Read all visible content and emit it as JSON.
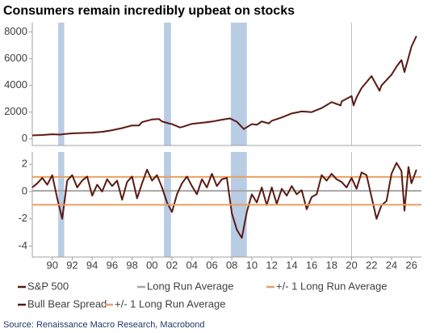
{
  "chart_data": [
    {
      "type": "line",
      "title": "Consumers remain incredibly upbeat on stocks",
      "xlim": [
        1988,
        2027
      ],
      "ylim": [
        -500,
        8700
      ],
      "yticks": [
        0,
        2000,
        4000,
        6000,
        8000
      ],
      "shaded_ranges": [
        [
          1990.6,
          1991.2
        ],
        [
          2001.2,
          2001.9
        ],
        [
          2007.9,
          2009.5
        ]
      ],
      "vlines": [
        2020
      ],
      "series": [
        {
          "name": "S&P 500",
          "color": "#5a1a12",
          "x": [
            1988,
            1989,
            1990,
            1990.8,
            1991.5,
            1992,
            1993,
            1994,
            1995,
            1996,
            1997,
            1998,
            1998.7,
            1999,
            2000,
            2000.7,
            2001,
            2001.7,
            2002,
            2002.8,
            2003,
            2004,
            2005,
            2006,
            2007,
            2007.8,
            2008.5,
            2009.2,
            2010,
            2010.5,
            2011,
            2011.7,
            2012,
            2013,
            2014,
            2015,
            2016,
            2017,
            2018,
            2018.9,
            2019,
            2020,
            2020.2,
            2020.5,
            2021,
            2022,
            2022.8,
            2023,
            2024,
            2024.5,
            2025,
            2025.3,
            2025.6,
            2026,
            2026.5
          ],
          "values": [
            260,
            290,
            340,
            320,
            380,
            410,
            440,
            460,
            520,
            640,
            800,
            1000,
            1000,
            1250,
            1450,
            1480,
            1300,
            1150,
            1100,
            850,
            880,
            1120,
            1200,
            1290,
            1430,
            1530,
            1280,
            730,
            1100,
            1050,
            1300,
            1150,
            1350,
            1600,
            1900,
            2050,
            2000,
            2300,
            2750,
            2500,
            2800,
            3200,
            2500,
            3100,
            3800,
            4700,
            3600,
            4000,
            4800,
            5400,
            5900,
            5000,
            5800,
            6900,
            7700
          ]
        }
      ]
    },
    {
      "type": "line",
      "xlim": [
        1988,
        2027
      ],
      "ylim": [
        -4.8,
        2.9
      ],
      "yticks": [
        -4,
        -2,
        0,
        2
      ],
      "xticks": [
        {
          "value": 1990,
          "label": "90"
        },
        {
          "value": 1992,
          "label": "92"
        },
        {
          "value": 1994,
          "label": "94"
        },
        {
          "value": 1996,
          "label": "96"
        },
        {
          "value": 1998,
          "label": "98"
        },
        {
          "value": 2000,
          "label": "00"
        },
        {
          "value": 2002,
          "label": "02"
        },
        {
          "value": 2004,
          "label": "04"
        },
        {
          "value": 2006,
          "label": "06"
        },
        {
          "value": 2008,
          "label": "08"
        },
        {
          "value": 2010,
          "label": "10"
        },
        {
          "value": 2012,
          "label": "12"
        },
        {
          "value": 2014,
          "label": "14"
        },
        {
          "value": 2016,
          "label": "16"
        },
        {
          "value": 2018,
          "label": "18"
        },
        {
          "value": 2020,
          "label": "20"
        },
        {
          "value": 2022,
          "label": "22"
        },
        {
          "value": 2024,
          "label": "24"
        },
        {
          "value": 2026,
          "label": "26"
        }
      ],
      "shaded_ranges": [
        [
          1990.6,
          1991.2
        ],
        [
          2001.2,
          2001.9
        ],
        [
          2007.9,
          2009.5
        ]
      ],
      "vlines": [
        2020
      ],
      "series": [
        {
          "name": "Long Run Average",
          "color": "#a6a6a6",
          "x": [
            1988,
            2027
          ],
          "values": [
            0.05,
            0.05
          ]
        },
        {
          "name": "+/- 1 Long Run Average",
          "color": "#e8a060",
          "x": [
            1988,
            2027
          ],
          "values": [
            1.07,
            1.07
          ]
        },
        {
          "name": "Bull Bear Spread",
          "color": "#5a1a12",
          "x": [
            1988,
            1988.5,
            1989,
            1989.5,
            1990,
            1990.5,
            1991,
            1991.5,
            1992,
            1992.5,
            1993,
            1993.5,
            1994,
            1994.5,
            1995,
            1995.5,
            1996,
            1996.5,
            1997,
            1997.5,
            1998,
            1998.5,
            1999,
            1999.5,
            2000,
            2000.5,
            2001,
            2001.5,
            2002,
            2002.5,
            2003,
            2003.5,
            2004,
            2004.5,
            2005,
            2005.5,
            2006,
            2006.5,
            2007,
            2007.5,
            2008,
            2008.5,
            2009,
            2009.5,
            2010,
            2010.5,
            2011,
            2011.5,
            2012,
            2012.5,
            2013,
            2013.5,
            2014,
            2014.5,
            2015,
            2015.5,
            2016,
            2016.5,
            2017,
            2017.5,
            2018,
            2018.5,
            2019,
            2019.5,
            2020,
            2020.5,
            2021,
            2021.5,
            2022,
            2022.5,
            2023,
            2023.5,
            2024,
            2024.5,
            2025,
            2025.3,
            2025.7,
            2026,
            2026.5
          ],
          "values": [
            0.3,
            0.6,
            1.0,
            0.5,
            1.2,
            -0.5,
            -2.0,
            0.8,
            1.2,
            0.3,
            0.8,
            1.1,
            -0.3,
            0.5,
            0.0,
            0.9,
            0.4,
            0.8,
            -0.6,
            0.7,
            1.1,
            -0.5,
            0.6,
            1.6,
            0.8,
            1.2,
            0.3,
            -0.8,
            -1.5,
            -0.2,
            0.6,
            1.1,
            0.4,
            -0.2,
            0.9,
            0.3,
            1.3,
            0.4,
            0.9,
            1.0,
            -1.6,
            -2.8,
            -3.4,
            -1.5,
            -0.2,
            -0.8,
            0.3,
            -1.0,
            0.3,
            -0.9,
            0.2,
            -0.3,
            0.4,
            -0.2,
            0.1,
            -1.3,
            -0.4,
            -0.2,
            1.2,
            0.8,
            1.3,
            0.9,
            0.7,
            0.3,
            1.0,
            0.2,
            1.4,
            1.2,
            -0.4,
            -2.0,
            -1.0,
            -0.7,
            1.3,
            2.1,
            1.5,
            -1.4,
            1.8,
            0.6,
            1.6
          ]
        },
        {
          "name": "+/- 1 Long Run Average",
          "color": "#e8a060",
          "x": [
            1988,
            2027
          ],
          "values": [
            -0.97,
            -0.97
          ]
        }
      ]
    }
  ],
  "source": "Source: Renaissance Macro Research, Macrobond"
}
